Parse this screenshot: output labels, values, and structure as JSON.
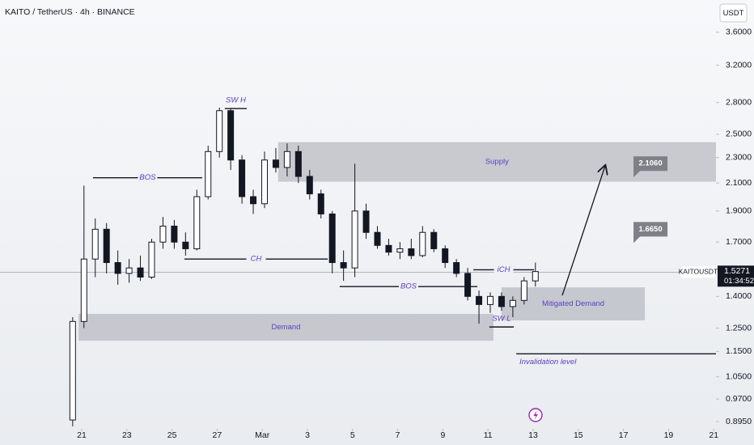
{
  "chart_data": {
    "type": "candlestick",
    "title": "KAITO / TetherUS · 4h · BINANCE",
    "currency": "USDT",
    "symbol": "KAITOUSDT",
    "countdown": "01:34:52",
    "last_price": {
      "value": 1.5271,
      "label": "1.5271"
    },
    "log_scale": true,
    "up_color": "#ffffff",
    "down_color": "#131722",
    "x": [
      20.6,
      21.1,
      21.6,
      22.1,
      22.6,
      23.1,
      23.6,
      24.1,
      24.6,
      25.1,
      25.6,
      26.1,
      26.6,
      27.1,
      27.6,
      28.1,
      28.6,
      29.1,
      29.6,
      30.1,
      30.6,
      31.1,
      31.6,
      32.1,
      32.6,
      33.1,
      33.6,
      34.1,
      34.6,
      35.1,
      35.6,
      36.1,
      36.6,
      37.1,
      37.6,
      38.1,
      38.6,
      39.1,
      39.6,
      40.1,
      40.6,
      41.1
    ],
    "open": [
      0.9,
      1.28,
      1.6,
      1.78,
      1.58,
      1.52,
      1.55,
      1.5,
      1.7,
      1.8,
      1.7,
      1.66,
      2.0,
      2.35,
      2.72,
      2.28,
      2.0,
      1.95,
      2.28,
      2.22,
      2.35,
      2.15,
      2.02,
      1.88,
      1.58,
      1.55,
      1.9,
      1.76,
      1.68,
      1.64,
      1.66,
      1.62,
      1.76,
      1.66,
      1.58,
      1.52,
      1.4,
      1.36,
      1.4,
      1.35,
      1.38,
      1.48
    ],
    "high": [
      1.3,
      2.08,
      1.85,
      1.82,
      1.65,
      1.6,
      1.62,
      1.72,
      1.86,
      1.84,
      1.76,
      2.05,
      2.4,
      2.75,
      2.74,
      2.32,
      2.05,
      2.35,
      2.38,
      2.42,
      2.4,
      2.2,
      2.05,
      1.9,
      1.65,
      2.25,
      1.95,
      1.8,
      1.72,
      1.7,
      1.72,
      1.8,
      1.78,
      1.68,
      1.6,
      1.55,
      1.43,
      1.42,
      1.42,
      1.4,
      1.5,
      1.58
    ],
    "low": [
      0.88,
      1.25,
      1.5,
      1.52,
      1.46,
      1.47,
      1.48,
      1.49,
      1.66,
      1.66,
      1.62,
      1.65,
      1.98,
      2.3,
      2.2,
      1.95,
      1.88,
      1.92,
      2.18,
      2.15,
      2.1,
      1.98,
      1.85,
      1.52,
      1.48,
      1.5,
      1.72,
      1.66,
      1.62,
      1.6,
      1.6,
      1.61,
      1.64,
      1.55,
      1.5,
      1.38,
      1.27,
      1.32,
      1.33,
      1.3,
      1.36,
      1.45
    ],
    "close": [
      1.28,
      1.6,
      1.78,
      1.58,
      1.52,
      1.55,
      1.5,
      1.7,
      1.8,
      1.7,
      1.66,
      2.0,
      2.35,
      2.72,
      2.28,
      2.0,
      1.95,
      2.28,
      2.22,
      2.35,
      2.15,
      2.02,
      1.88,
      1.58,
      1.55,
      1.9,
      1.76,
      1.68,
      1.64,
      1.66,
      1.62,
      1.76,
      1.66,
      1.58,
      1.52,
      1.4,
      1.36,
      1.4,
      1.35,
      1.38,
      1.48,
      1.53
    ],
    "xlim": [
      17.38,
      49.1
    ],
    "xticks": [
      {
        "value": 21,
        "label": "21"
      },
      {
        "value": 23,
        "label": "23"
      },
      {
        "value": 25,
        "label": "25"
      },
      {
        "value": 27,
        "label": "27"
      },
      {
        "value": 29,
        "label": "Mar"
      },
      {
        "value": 31,
        "label": "3"
      },
      {
        "value": 33,
        "label": "5"
      },
      {
        "value": 35,
        "label": "7"
      },
      {
        "value": 37,
        "label": "9"
      },
      {
        "value": 39,
        "label": "11"
      },
      {
        "value": 41,
        "label": "13"
      },
      {
        "value": 43,
        "label": "15"
      },
      {
        "value": 45,
        "label": "17"
      },
      {
        "value": 47,
        "label": "19"
      },
      {
        "value": 49,
        "label": "21"
      }
    ],
    "ylim": [
      0.872,
      4.04
    ],
    "yticks": [
      {
        "value": 3.6,
        "label": "3.6000"
      },
      {
        "value": 3.2,
        "label": "3.2000"
      },
      {
        "value": 2.8,
        "label": "2.8000"
      },
      {
        "value": 2.5,
        "label": "2.5000"
      },
      {
        "value": 2.3,
        "label": "2.3000"
      },
      {
        "value": 2.1,
        "label": "2.1000"
      },
      {
        "value": 1.9,
        "label": "1.9000"
      },
      {
        "value": 1.7,
        "label": "1.7000"
      },
      {
        "value": 1.4,
        "label": "1.4000"
      },
      {
        "value": 1.25,
        "label": "1.2500"
      },
      {
        "value": 1.15,
        "label": "1.1500"
      },
      {
        "value": 1.05,
        "label": "1.0500"
      },
      {
        "value": 0.97,
        "label": "0.9700"
      },
      {
        "value": 0.895,
        "label": "0.8950"
      }
    ],
    "zones": [
      {
        "label": "Supply",
        "x": [
          29.7,
          49.1
        ],
        "y": [
          2.11,
          2.43
        ]
      },
      {
        "label": "Demand",
        "x": [
          20.86,
          39.24
        ],
        "y": [
          1.195,
          1.315
        ]
      },
      {
        "label": "Mitigated Demand",
        "x": [
          39.6,
          45.95
        ],
        "y": [
          1.285,
          1.446
        ]
      }
    ],
    "levels": [
      {
        "label": "BOS",
        "x": [
          21.5,
          26.34
        ],
        "y": 2.14
      },
      {
        "label": "CH",
        "x": [
          25.55,
          31.9
        ],
        "y": 1.6
      },
      {
        "label": "BOS",
        "x": [
          32.43,
          38.53
        ],
        "y": 1.45
      },
      {
        "label": "iCH",
        "x": [
          38.35,
          41.04
        ],
        "y": 1.54
      },
      {
        "label": "SW H",
        "x": [
          27.34,
          28.31
        ],
        "y": 2.74
      },
      {
        "label": "SW L",
        "x": [
          39.06,
          40.14
        ],
        "y": 1.255
      },
      {
        "label": "Invalidation level",
        "x": [
          40.25,
          49.1
        ],
        "y": 1.14
      }
    ],
    "arrow": {
      "x": [
        42.29,
        44.19
      ],
      "y": [
        1.405,
        2.233
      ]
    },
    "callouts": [
      {
        "x": 46.2,
        "value": 2.106,
        "label": "2.1060"
      },
      {
        "x": 46.2,
        "value": 1.665,
        "label": "1.6650"
      }
    ]
  }
}
